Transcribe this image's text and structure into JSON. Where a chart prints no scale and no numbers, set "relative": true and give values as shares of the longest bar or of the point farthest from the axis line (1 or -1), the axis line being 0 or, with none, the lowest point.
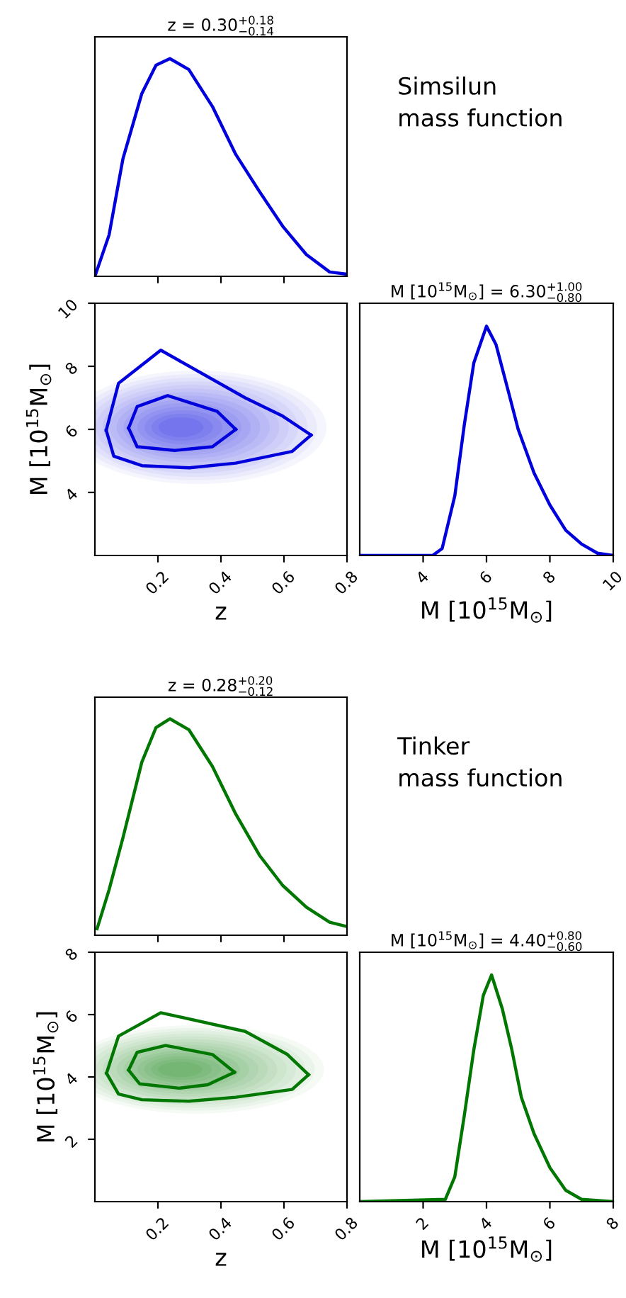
{
  "chart_data": [
    {
      "type": "line",
      "title": "z = 0.30$^{+0.18}$$_{−0.14}$",
      "relative": true,
      "xlim": [
        0,
        0.8
      ],
      "xticks": [
        {
          "value": 0.2,
          "label": null
        },
        {
          "value": 0.4,
          "label": null
        },
        {
          "value": 0.6,
          "label": null
        }
      ],
      "tick_labels": false,
      "annotations": [
        "Simsilun\nmass function"
      ],
      "series": [
        {
          "color": "#0000dd",
          "x": [
            0,
            0.045,
            0.089,
            0.149,
            0.194,
            0.238,
            0.298,
            0.373,
            0.447,
            0.522,
            0.596,
            0.671,
            0.745,
            0.8
          ],
          "values": [
            0,
            0.19,
            0.54,
            0.84,
            0.97,
            1,
            0.95,
            0.78,
            0.56,
            0.39,
            0.23,
            0.1,
            0.02,
            0.01
          ]
        }
      ]
    },
    {
      "type": "line",
      "xlabel": "z",
      "ylabel": "M [10$^{15}$M$_{⊙}$]",
      "xlim": [
        0,
        0.8
      ],
      "xticks": [
        0.2,
        0.4,
        0.6,
        0.8
      ],
      "ylim": [
        2,
        10
      ],
      "yticks": [
        4,
        6,
        8,
        10
      ],
      "series": [
        {
          "color": "#0000dd",
          "x": [
            0.036,
            0.075,
            0.209,
            0.477,
            0.596,
            0.686
          ],
          "values": [
            5.97,
            7.46,
            8.51,
            7.0,
            6.42,
            5.82
          ]
        },
        {
          "color": "#0000dd",
          "x": [
            0.036,
            0.06,
            0.149,
            0.3,
            0.447,
            0.626,
            0.686
          ],
          "values": [
            5.97,
            5.15,
            4.85,
            4.78,
            4.93,
            5.3,
            5.82
          ]
        },
        {
          "color": "#0000dd",
          "x": [
            0.107,
            0.134,
            0.231,
            0.388,
            0.447
          ],
          "values": [
            6.04,
            6.72,
            7.07,
            6.57,
            6.0
          ]
        },
        {
          "color": "#0000dd",
          "x": [
            0.107,
            0.134,
            0.253,
            0.373,
            0.447
          ],
          "values": [
            6.04,
            5.45,
            5.33,
            5.45,
            6.0
          ]
        }
      ]
    },
    {
      "type": "line",
      "title": "M [10$^{15}$M$_{⊙}$] = 6.30$^{+1.00}$$_{−0.80}$",
      "xlabel": "M [10$^{15}$M$_{⊙}$]",
      "relative": true,
      "xlim": [
        2,
        10
      ],
      "xticks": [
        4,
        6,
        8,
        10
      ],
      "tick_labels": "x",
      "series": [
        {
          "color": "#0000dd",
          "x": [
            2,
            4.3,
            4.6,
            5.0,
            5.3,
            5.6,
            6.0,
            6.3,
            6.7,
            7.0,
            7.5,
            8.0,
            8.5,
            9.0,
            9.5,
            10
          ],
          "values": [
            0,
            0,
            0.03,
            0.26,
            0.57,
            0.84,
            1,
            0.92,
            0.71,
            0.55,
            0.36,
            0.22,
            0.11,
            0.05,
            0.01,
            0
          ]
        }
      ]
    },
    {
      "type": "line",
      "title": "z = 0.28$^{+0.20}$$_{−0.12}$",
      "relative": true,
      "xlim": [
        0,
        0.8
      ],
      "xticks": [
        {
          "value": 0.2,
          "label": null
        },
        {
          "value": 0.4,
          "label": null
        },
        {
          "value": 0.6,
          "label": null
        }
      ],
      "tick_labels": false,
      "annotations": [
        "Tinker\nmass function"
      ],
      "series": [
        {
          "color": "#007700",
          "x": [
            0.007,
            0.045,
            0.089,
            0.149,
            0.194,
            0.238,
            0.298,
            0.373,
            0.447,
            0.522,
            0.596,
            0.671,
            0.745,
            0.8
          ],
          "values": [
            0.03,
            0.21,
            0.45,
            0.8,
            0.96,
            1,
            0.95,
            0.78,
            0.56,
            0.37,
            0.23,
            0.13,
            0.06,
            0.04
          ]
        }
      ]
    },
    {
      "type": "line",
      "xlabel": "z",
      "ylabel": "M [10$^{15}$M$_{⊙}$]",
      "xlim": [
        0,
        0.8
      ],
      "xticks": [
        0.2,
        0.4,
        0.6,
        0.8
      ],
      "ylim": [
        0,
        8
      ],
      "yticks": [
        2,
        4,
        6,
        8
      ],
      "series": [
        {
          "color": "#007700",
          "x": [
            0.037,
            0.075,
            0.209,
            0.477,
            0.611,
            0.678
          ],
          "values": [
            4.12,
            5.31,
            6.06,
            5.46,
            4.72,
            4.07
          ]
        },
        {
          "color": "#007700",
          "x": [
            0.037,
            0.075,
            0.149,
            0.298,
            0.447,
            0.626,
            0.678
          ],
          "values": [
            4.12,
            3.45,
            3.27,
            3.22,
            3.35,
            3.6,
            4.07
          ]
        },
        {
          "color": "#007700",
          "x": [
            0.107,
            0.134,
            0.224,
            0.373,
            0.443
          ],
          "values": [
            4.22,
            4.79,
            5.01,
            4.72,
            4.15
          ]
        },
        {
          "color": "#007700",
          "x": [
            0.107,
            0.142,
            0.268,
            0.358,
            0.443
          ],
          "values": [
            4.22,
            3.78,
            3.64,
            3.75,
            4.15
          ]
        }
      ]
    },
    {
      "type": "line",
      "title": "M [10$^{15}$M$_{⊙}$] = 4.40$^{+0.80}$$_{−0.60}$",
      "xlabel": "M [10$^{15}$M$_{⊙}$]",
      "relative": true,
      "xlim": [
        0,
        8
      ],
      "xticks": [
        2,
        4,
        6,
        8
      ],
      "tick_labels": "x",
      "series": [
        {
          "color": "#007700",
          "x": [
            0,
            2.7,
            3.0,
            3.3,
            3.6,
            3.9,
            4.16,
            4.5,
            4.8,
            5.1,
            5.5,
            6.0,
            6.5,
            7.0,
            8
          ],
          "values": [
            0,
            0.01,
            0.11,
            0.38,
            0.67,
            0.91,
            1,
            0.85,
            0.67,
            0.46,
            0.3,
            0.15,
            0.05,
            0.01,
            0
          ]
        }
      ]
    }
  ]
}
